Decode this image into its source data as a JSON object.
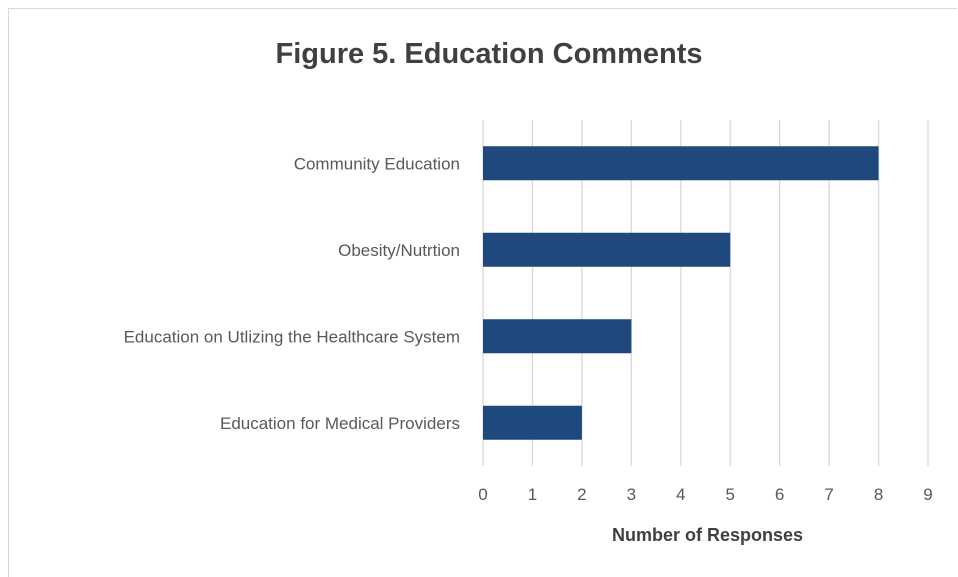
{
  "chart_data": {
    "type": "bar",
    "orientation": "horizontal",
    "title": "Figure 5. Education Comments",
    "xlabel": "Number of Responses",
    "ylabel": "",
    "categories": [
      "Community Education",
      "Obesity/Nutrtion",
      "Education on Utlizing the Healthcare System",
      "Education for Medical Providers"
    ],
    "values": [
      8,
      5,
      3,
      2
    ],
    "xlim": [
      0,
      9
    ],
    "xticks": [
      "0",
      "1",
      "2",
      "3",
      "4",
      "5",
      "6",
      "7",
      "8",
      "9"
    ],
    "grid": "vertical",
    "legend": "none",
    "bar_color": "#1f497d",
    "grid_color": "#d9d9d9"
  }
}
